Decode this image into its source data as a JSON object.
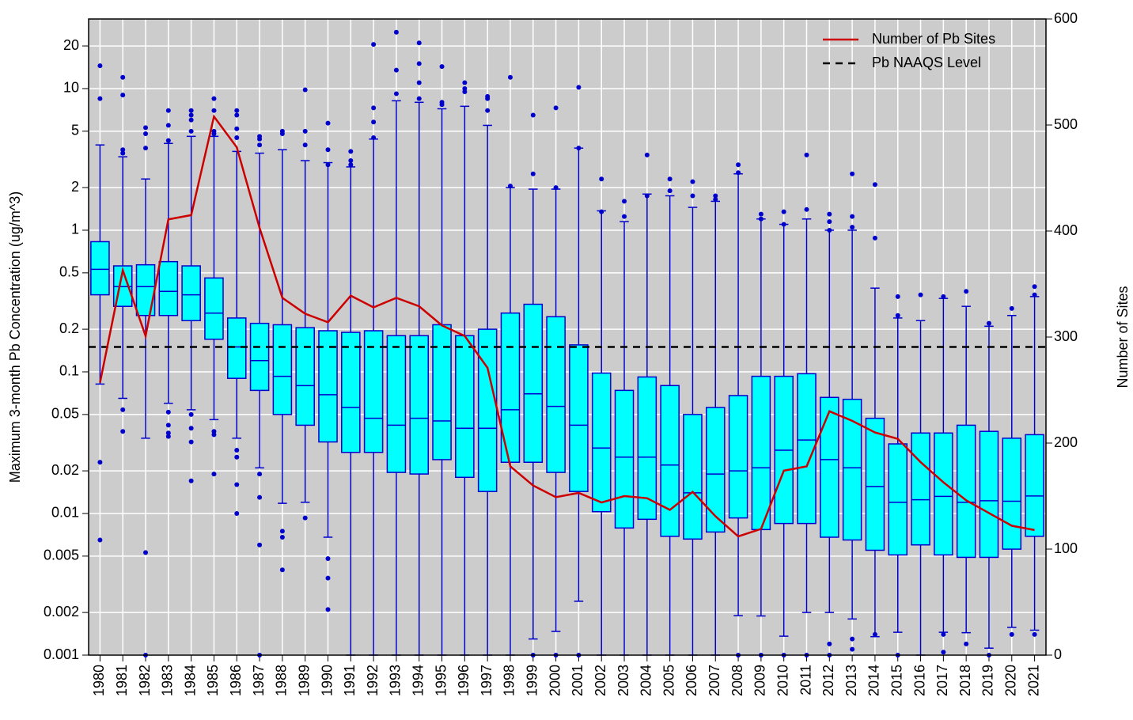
{
  "chart_data": {
    "type": "box",
    "ylabel": "Maximum 3-month Pb Concentration (ug/m^3)",
    "y2label": "Number of Sites",
    "yscale": "log",
    "grid": true,
    "legend": "upper right",
    "box_color": "#00ffff",
    "edge_color": "#0000cd",
    "categories": [
      "1980",
      "1981",
      "1982",
      "1983",
      "1984",
      "1985",
      "1986",
      "1987",
      "1988",
      "1989",
      "1990",
      "1991",
      "1992",
      "1993",
      "1994",
      "1995",
      "1996",
      "1997",
      "1998",
      "1999",
      "2000",
      "2001",
      "2002",
      "2003",
      "2004",
      "2005",
      "2006",
      "2007",
      "2008",
      "2009",
      "2010",
      "2011",
      "2012",
      "2013",
      "2014",
      "2015",
      "2016",
      "2017",
      "2018",
      "2019",
      "2020",
      "2021"
    ],
    "boxes": [
      {
        "whislo": 0.082,
        "q1": 0.35,
        "med": 0.53,
        "q3": 0.83,
        "whishi": 4.0,
        "fliers": [
          14.5,
          8.5,
          0.023,
          0.0065
        ]
      },
      {
        "whislo": 0.065,
        "q1": 0.29,
        "med": 0.4,
        "q3": 0.56,
        "whishi": 3.3,
        "fliers": [
          12,
          9,
          3.7,
          3.5,
          0.054,
          0.038
        ]
      },
      {
        "whislo": 0.034,
        "q1": 0.25,
        "med": 0.4,
        "q3": 0.57,
        "whishi": 2.3,
        "fliers": [
          5.3,
          4.8,
          3.8,
          0.0053,
          0.001
        ]
      },
      {
        "whislo": 0.06,
        "q1": 0.25,
        "med": 0.37,
        "q3": 0.6,
        "whishi": 4.1,
        "fliers": [
          7,
          5.5,
          4.3,
          0.052,
          0.042,
          0.037,
          0.035
        ]
      },
      {
        "whislo": 0.054,
        "q1": 0.23,
        "med": 0.35,
        "q3": 0.56,
        "whishi": 4.6,
        "fliers": [
          7,
          6.5,
          6,
          5,
          0.05,
          0.04,
          0.032,
          0.017
        ]
      },
      {
        "whislo": 0.046,
        "q1": 0.17,
        "med": 0.26,
        "q3": 0.46,
        "whishi": 4.6,
        "fliers": [
          8.5,
          7,
          5,
          4.8,
          0.038,
          0.036,
          0.019
        ]
      },
      {
        "whislo": 0.034,
        "q1": 0.09,
        "med": 0.15,
        "q3": 0.24,
        "whishi": 3.6,
        "fliers": [
          7,
          6.5,
          5.2,
          4.5,
          0.028,
          0.025,
          0.016,
          0.01
        ]
      },
      {
        "whislo": 0.021,
        "q1": 0.074,
        "med": 0.12,
        "q3": 0.22,
        "whishi": 3.5,
        "fliers": [
          4.6,
          4.4,
          4,
          0.019,
          0.013,
          0.006,
          0.001
        ]
      },
      {
        "whislo": 0.0118,
        "q1": 0.05,
        "med": 0.093,
        "q3": 0.215,
        "whishi": 3.7,
        "fliers": [
          5,
          4.8,
          0.0075,
          0.0068,
          0.004
        ]
      },
      {
        "whislo": 0.012,
        "q1": 0.042,
        "med": 0.08,
        "q3": 0.205,
        "whishi": 3.1,
        "fliers": [
          9.8,
          5,
          4,
          0.0093
        ]
      },
      {
        "whislo": 0.0068,
        "q1": 0.032,
        "med": 0.069,
        "q3": 0.195,
        "whishi": 3.0,
        "fliers": [
          5.7,
          3.7,
          2.9,
          0.0048,
          0.0035,
          0.0021
        ]
      },
      {
        "whislo": 0.001,
        "q1": 0.027,
        "med": 0.056,
        "q3": 0.19,
        "whishi": 2.8,
        "fliers": [
          3.6,
          3.1,
          2.9
        ]
      },
      {
        "whislo": 0.001,
        "q1": 0.027,
        "med": 0.047,
        "q3": 0.195,
        "whishi": 4.4,
        "fliers": [
          20.5,
          7.3,
          5.8,
          4.5
        ]
      },
      {
        "whislo": 0.001,
        "q1": 0.0195,
        "med": 0.042,
        "q3": 0.18,
        "whishi": 8.2,
        "fliers": [
          25,
          13.5,
          9.2
        ]
      },
      {
        "whislo": 0.001,
        "q1": 0.019,
        "med": 0.047,
        "q3": 0.18,
        "whishi": 8.0,
        "fliers": [
          21,
          15,
          11,
          8.5
        ]
      },
      {
        "whislo": 0.001,
        "q1": 0.024,
        "med": 0.045,
        "q3": 0.215,
        "whishi": 7.2,
        "fliers": [
          14.3,
          8,
          7.7
        ]
      },
      {
        "whislo": 0.001,
        "q1": 0.018,
        "med": 0.04,
        "q3": 0.18,
        "whishi": 7.5,
        "fliers": [
          11,
          10,
          9.5
        ]
      },
      {
        "whislo": 0.001,
        "q1": 0.0143,
        "med": 0.04,
        "q3": 0.2,
        "whishi": 5.5,
        "fliers": [
          8.8,
          8.5,
          7
        ]
      },
      {
        "whislo": 0.001,
        "q1": 0.023,
        "med": 0.054,
        "q3": 0.26,
        "whishi": 2.0,
        "fliers": [
          12,
          2.05
        ]
      },
      {
        "whislo": 0.0013,
        "q1": 0.023,
        "med": 0.07,
        "q3": 0.3,
        "whishi": 1.95,
        "fliers": [
          6.5,
          2.5,
          0.001
        ]
      },
      {
        "whislo": 0.00147,
        "q1": 0.0195,
        "med": 0.057,
        "q3": 0.245,
        "whishi": 1.95,
        "fliers": [
          7.3,
          2.0,
          0.001
        ]
      },
      {
        "whislo": 0.0024,
        "q1": 0.0143,
        "med": 0.042,
        "q3": 0.155,
        "whishi": 3.8,
        "fliers": [
          10.2,
          3.8,
          0.001
        ]
      },
      {
        "whislo": 0.001,
        "q1": 0.0103,
        "med": 0.029,
        "q3": 0.098,
        "whishi": 1.37,
        "fliers": [
          2.3,
          1.35
        ]
      },
      {
        "whislo": 0.001,
        "q1": 0.0079,
        "med": 0.025,
        "q3": 0.074,
        "whishi": 1.15,
        "fliers": [
          1.6,
          1.25
        ]
      },
      {
        "whislo": 0.001,
        "q1": 0.0091,
        "med": 0.025,
        "q3": 0.092,
        "whishi": 1.8,
        "fliers": [
          3.4,
          1.75
        ]
      },
      {
        "whislo": 0.001,
        "q1": 0.0069,
        "med": 0.022,
        "q3": 0.08,
        "whishi": 1.75,
        "fliers": [
          2.3,
          1.9
        ]
      },
      {
        "whislo": 0.001,
        "q1": 0.0066,
        "med": 0.014,
        "q3": 0.05,
        "whishi": 1.45,
        "fliers": [
          2.2,
          1.75
        ]
      },
      {
        "whislo": 0.001,
        "q1": 0.0074,
        "med": 0.019,
        "q3": 0.056,
        "whishi": 1.6,
        "fliers": [
          1.75,
          1.65
        ]
      },
      {
        "whislo": 0.0019,
        "q1": 0.0093,
        "med": 0.02,
        "q3": 0.068,
        "whishi": 2.5,
        "fliers": [
          2.9,
          2.55,
          0.001
        ]
      },
      {
        "whislo": 0.00189,
        "q1": 0.0077,
        "med": 0.021,
        "q3": 0.093,
        "whishi": 1.2,
        "fliers": [
          1.3,
          1.2,
          0.001
        ]
      },
      {
        "whislo": 0.00136,
        "q1": 0.0085,
        "med": 0.028,
        "q3": 0.093,
        "whishi": 1.1,
        "fliers": [
          1.35,
          1.1,
          0.001
        ]
      },
      {
        "whislo": 0.002,
        "q1": 0.0085,
        "med": 0.033,
        "q3": 0.097,
        "whishi": 1.2,
        "fliers": [
          3.4,
          1.4,
          0.001
        ]
      },
      {
        "whislo": 0.002,
        "q1": 0.0068,
        "med": 0.024,
        "q3": 0.066,
        "whishi": 1.0,
        "fliers": [
          1.3,
          1.15,
          1.0,
          0.0012,
          0.001
        ]
      },
      {
        "whislo": 0.0018,
        "q1": 0.0065,
        "med": 0.021,
        "q3": 0.064,
        "whishi": 1.0,
        "fliers": [
          2.5,
          1.25,
          1.05,
          0.0013,
          0.0011
        ]
      },
      {
        "whislo": 0.00135,
        "q1": 0.0055,
        "med": 0.0155,
        "q3": 0.047,
        "whishi": 0.39,
        "fliers": [
          2.1,
          0.88,
          0.0014
        ]
      },
      {
        "whislo": 0.00145,
        "q1": 0.0051,
        "med": 0.012,
        "q3": 0.031,
        "whishi": 0.24,
        "fliers": [
          0.34,
          0.25,
          0.001
        ]
      },
      {
        "whislo": 0.001,
        "q1": 0.006,
        "med": 0.0125,
        "q3": 0.037,
        "whishi": 0.23,
        "fliers": [
          0.35
        ]
      },
      {
        "whislo": 0.00145,
        "q1": 0.0051,
        "med": 0.0132,
        "q3": 0.037,
        "whishi": 0.33,
        "fliers": [
          0.34,
          0.0014,
          0.00105
        ]
      },
      {
        "whislo": 0.00144,
        "q1": 0.0049,
        "med": 0.012,
        "q3": 0.042,
        "whishi": 0.29,
        "fliers": [
          0.37,
          0.0012
        ]
      },
      {
        "whislo": 0.00112,
        "q1": 0.0049,
        "med": 0.0123,
        "q3": 0.038,
        "whishi": 0.21,
        "fliers": [
          0.22,
          0.001
        ]
      },
      {
        "whislo": 0.00157,
        "q1": 0.0056,
        "med": 0.0122,
        "q3": 0.034,
        "whishi": 0.25,
        "fliers": [
          0.28,
          0.0014
        ]
      },
      {
        "whislo": 0.0015,
        "q1": 0.0069,
        "med": 0.0133,
        "q3": 0.036,
        "whishi": 0.34,
        "fliers": [
          0.4,
          0.35,
          0.0014
        ]
      }
    ],
    "series": [
      {
        "name": "Number of Pb Sites",
        "color": "#cc0000",
        "axis": "y2",
        "values": [
          257,
          363,
          301,
          411,
          415,
          508,
          479,
          403,
          337,
          322,
          314,
          339,
          328,
          337,
          329,
          311,
          301,
          271,
          178,
          160,
          149,
          153,
          144,
          150,
          148,
          137,
          154,
          131,
          112,
          119,
          174,
          178,
          230,
          221,
          210,
          204,
          182,
          163,
          146,
          134,
          122,
          118
        ]
      }
    ],
    "reference_lines": [
      {
        "name": "Pb NAAQS Level",
        "value": 0.15,
        "color": "#000000"
      }
    ],
    "ylim": [
      0.001,
      31
    ],
    "yticks": [
      0.001,
      0.002,
      0.005,
      0.01,
      0.02,
      0.05,
      0.1,
      0.2,
      0.5,
      1,
      2,
      5,
      10,
      20
    ],
    "y2lim": [
      0,
      600
    ],
    "y2ticks": [
      0,
      100,
      200,
      300,
      400,
      500,
      600
    ]
  }
}
